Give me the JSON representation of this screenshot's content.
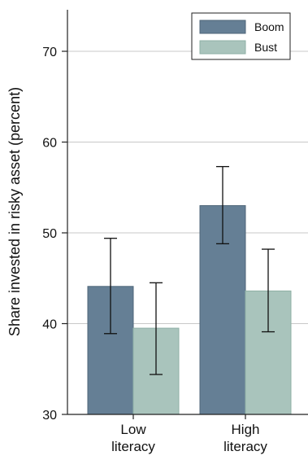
{
  "chart_data": {
    "type": "bar",
    "title": "",
    "xlabel": "",
    "ylabel": "Share invested in risky asset (percent)",
    "ylim": [
      30,
      75
    ],
    "yticks": [
      30,
      40,
      50,
      60,
      70
    ],
    "grid": true,
    "legend_position": "top-right",
    "categories": [
      {
        "line1": "Low",
        "line2": "literacy"
      },
      {
        "line1": "High",
        "line2": "literacy"
      }
    ],
    "series": [
      {
        "name": "Boom",
        "color": "#657f95",
        "values": [
          44.1,
          53.0
        ],
        "error_low": [
          38.9,
          48.8
        ],
        "error_high": [
          49.4,
          57.3
        ]
      },
      {
        "name": "Bust",
        "color": "#a9c4bc",
        "values": [
          39.5,
          43.6
        ],
        "error_low": [
          34.4,
          39.1
        ],
        "error_high": [
          44.5,
          48.2
        ]
      }
    ]
  }
}
